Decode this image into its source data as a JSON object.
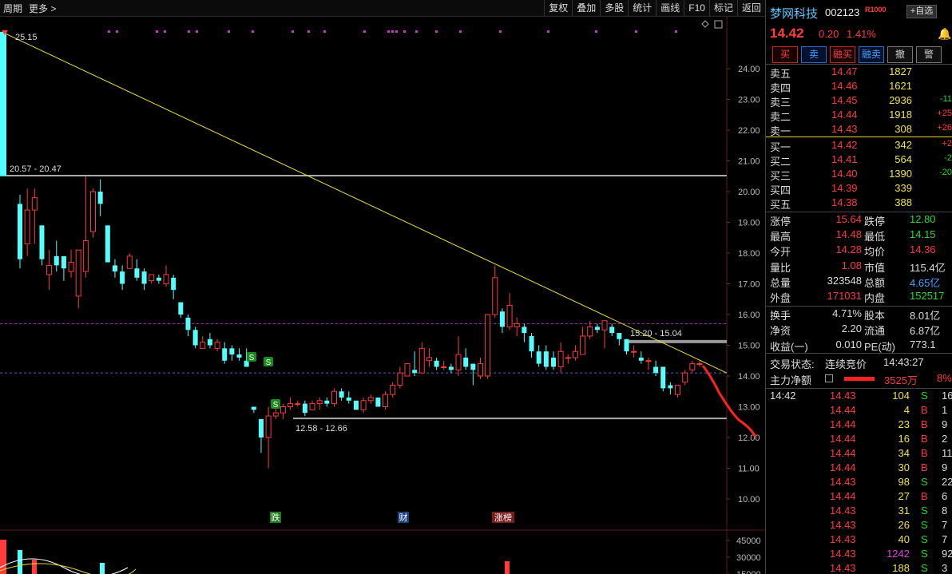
{
  "toolbar": {
    "period": "周期",
    "more": "更多 >",
    "buttons": [
      "复权",
      "叠加",
      "多股",
      "统计",
      "画线",
      "F10",
      "标记",
      "返回"
    ]
  },
  "chart": {
    "y_ticks": [
      "24.00",
      "23.00",
      "22.00",
      "21.00",
      "20.00",
      "19.00",
      "18.00",
      "17.00",
      "16.00",
      "15.00",
      "14.00",
      "13.00",
      "12.00",
      "11.00",
      "10.00"
    ],
    "vol_ticks": [
      "45000",
      "30000",
      "15000"
    ],
    "annotations": {
      "top": "25.15",
      "upper_band": "20.57 - 20.47",
      "mid_band": "15.20 - 15.04",
      "low_band": "12.58 - 12.66"
    },
    "event_tags": [
      {
        "label": "跌",
        "color": "#1d7a1d"
      },
      {
        "label": "财",
        "color": "#1a3f7a"
      },
      {
        "label": "涨榜",
        "color": "#7a1d1d"
      }
    ],
    "signal_label": "S"
  },
  "chart_data": {
    "type": "candlestick",
    "ylim": [
      9.5,
      25.5
    ],
    "candles": [
      [
        19.6,
        17.8,
        19.9,
        17.5
      ],
      [
        18.3,
        19.4,
        20.1,
        17.9
      ],
      [
        19.4,
        19.8,
        20.1,
        18.3
      ],
      [
        18.9,
        17.8,
        18.9,
        17.6
      ],
      [
        17.3,
        17.6,
        18.1,
        16.8
      ],
      [
        17.9,
        17.6,
        18.4,
        17.4
      ],
      [
        17.9,
        17.5,
        17.9,
        17.1
      ],
      [
        17.4,
        17.7,
        18.1,
        17.2
      ],
      [
        16.6,
        18.1,
        18.1,
        16.2
      ],
      [
        17.4,
        18.4,
        20.5,
        17.2
      ],
      [
        18.7,
        20.0,
        20.1,
        18.5
      ],
      [
        20.0,
        19.6,
        20.4,
        19.2
      ],
      [
        18.9,
        17.7,
        18.9,
        17.7
      ],
      [
        17.6,
        17.4,
        17.8,
        17.2
      ],
      [
        17.4,
        17.0,
        17.6,
        16.8
      ],
      [
        17.5,
        17.9,
        18.0,
        17.5
      ],
      [
        17.5,
        17.2,
        17.8,
        17.1
      ],
      [
        17.4,
        17.0,
        17.5,
        16.8
      ],
      [
        17.1,
        17.3,
        17.3,
        17.0
      ],
      [
        17.2,
        17.1,
        17.3,
        17.0
      ],
      [
        17.0,
        17.3,
        17.6,
        16.9
      ],
      [
        17.2,
        16.8,
        17.3,
        16.5
      ],
      [
        16.4,
        16.0,
        16.4,
        15.9
      ],
      [
        15.9,
        15.5,
        16.0,
        15.3
      ],
      [
        15.5,
        15.0,
        15.6,
        14.9
      ],
      [
        14.9,
        15.1,
        15.3,
        14.9
      ],
      [
        15.2,
        15.0,
        15.4,
        14.9
      ],
      [
        14.9,
        15.1,
        15.2,
        14.8
      ],
      [
        14.9,
        14.5,
        15.1,
        14.4
      ],
      [
        14.9,
        14.7,
        15.0,
        14.5
      ],
      [
        14.7,
        14.6,
        14.9,
        14.5
      ],
      [
        14.5,
        14.3,
        14.9,
        14.3
      ],
      [
        13.0,
        12.9,
        13.0,
        12.8
      ],
      [
        12.6,
        12.0,
        12.6,
        11.5
      ],
      [
        12.0,
        12.7,
        13.0,
        11.0
      ],
      [
        12.7,
        12.8,
        13.0,
        12.6
      ],
      [
        12.8,
        13.0,
        13.1,
        12.6
      ],
      [
        13.0,
        13.1,
        13.3,
        12.9
      ],
      [
        13.1,
        13.1,
        13.2,
        13.0
      ],
      [
        13.1,
        12.8,
        13.2,
        12.7
      ],
      [
        12.9,
        13.1,
        13.2,
        12.9
      ],
      [
        13.1,
        13.2,
        13.3,
        12.9
      ],
      [
        13.2,
        13.1,
        13.3,
        13.0
      ],
      [
        13.1,
        13.5,
        13.6,
        13.0
      ],
      [
        13.5,
        13.3,
        13.6,
        13.2
      ],
      [
        13.3,
        13.2,
        13.5,
        13.1
      ],
      [
        13.2,
        12.9,
        13.2,
        12.9
      ],
      [
        12.9,
        13.2,
        13.3,
        12.8
      ],
      [
        13.2,
        13.3,
        13.4,
        13.1
      ],
      [
        13.3,
        13.0,
        13.3,
        13.0
      ],
      [
        13.0,
        13.4,
        13.5,
        12.9
      ],
      [
        13.4,
        13.7,
        13.8,
        13.3
      ],
      [
        13.7,
        14.1,
        14.3,
        13.6
      ],
      [
        14.0,
        14.4,
        14.4,
        14.0
      ],
      [
        14.2,
        14.1,
        14.8,
        14.0
      ],
      [
        14.1,
        14.9,
        15.1,
        14.1
      ],
      [
        14.5,
        14.6,
        14.9,
        14.3
      ],
      [
        14.5,
        14.3,
        14.6,
        14.2
      ],
      [
        14.3,
        14.3,
        14.5,
        14.2
      ],
      [
        14.3,
        14.2,
        14.4,
        14.1
      ],
      [
        14.2,
        14.7,
        15.3,
        14.0
      ],
      [
        14.6,
        14.3,
        14.9,
        14.2
      ],
      [
        14.4,
        14.2,
        14.4,
        13.7
      ],
      [
        14.0,
        14.4,
        14.6,
        13.9
      ],
      [
        14.0,
        16.0,
        16.0,
        13.9
      ],
      [
        16.0,
        17.2,
        17.6,
        15.9
      ],
      [
        16.1,
        15.6,
        16.2,
        15.4
      ],
      [
        15.6,
        16.3,
        16.7,
        15.5
      ],
      [
        15.6,
        15.7,
        15.9,
        15.3
      ],
      [
        15.6,
        15.4,
        15.7,
        15.1
      ],
      [
        15.3,
        14.8,
        15.4,
        14.6
      ],
      [
        14.8,
        14.4,
        15.0,
        14.3
      ],
      [
        14.8,
        14.3,
        15.0,
        14.2
      ],
      [
        14.6,
        14.3,
        14.8,
        14.2
      ],
      [
        14.3,
        14.8,
        15.1,
        14.1
      ],
      [
        14.6,
        14.6,
        14.7,
        14.4
      ],
      [
        14.6,
        14.8,
        15.0,
        14.5
      ],
      [
        14.7,
        15.3,
        15.6,
        14.7
      ],
      [
        15.3,
        15.6,
        15.8,
        15.2
      ],
      [
        15.6,
        15.5,
        15.7,
        15.4
      ],
      [
        15.5,
        15.8,
        15.8,
        14.9
      ],
      [
        15.6,
        15.4,
        15.7,
        15.3
      ],
      [
        15.4,
        15.2,
        15.4,
        15.0
      ],
      [
        15.2,
        14.8,
        15.2,
        14.7
      ],
      [
        14.8,
        14.8,
        15.0,
        14.6
      ],
      [
        14.6,
        14.5,
        14.8,
        14.4
      ],
      [
        14.5,
        14.5,
        14.6,
        14.2
      ],
      [
        14.3,
        14.1,
        14.5,
        14.0
      ],
      [
        14.3,
        13.6,
        14.3,
        13.5
      ],
      [
        13.7,
        13.6,
        13.8,
        13.4
      ],
      [
        13.4,
        13.7,
        13.7,
        13.3
      ],
      [
        13.8,
        14.1,
        14.2,
        13.7
      ],
      [
        14.2,
        14.4,
        14.5,
        14.1
      ],
      [
        14.4,
        14.4,
        14.5,
        14.3
      ]
    ],
    "trendline": [
      [
        0,
        25.15
      ],
      [
        92,
        14.1
      ]
    ],
    "horizontal_lines": [
      20.52,
      15.12,
      12.62
    ],
    "dashed_lines": [
      15.7,
      14.1
    ]
  },
  "quote": {
    "name": "梦网科技",
    "code": "002123",
    "r_badge": "R1000",
    "watch": "+自选",
    "price": "14.42",
    "change": "0.20",
    "change_pct": "1.41%"
  },
  "trade_buttons": [
    "买",
    "卖",
    "融买",
    "融卖",
    "撤",
    "警"
  ],
  "sell_orders": [
    {
      "label": "卖五",
      "price": "14.47",
      "vol": "1827",
      "diff": ""
    },
    {
      "label": "卖四",
      "price": "14.46",
      "vol": "1621",
      "diff": ""
    },
    {
      "label": "卖三",
      "price": "14.45",
      "vol": "2936",
      "diff": "-11"
    },
    {
      "label": "卖二",
      "price": "14.44",
      "vol": "1918",
      "diff": "+25"
    },
    {
      "label": "卖一",
      "price": "14.43",
      "vol": "308",
      "diff": "+26"
    }
  ],
  "buy_orders": [
    {
      "label": "买一",
      "price": "14.42",
      "vol": "342",
      "diff": "+2"
    },
    {
      "label": "买二",
      "price": "14.41",
      "vol": "564",
      "diff": "-2"
    },
    {
      "label": "买三",
      "price": "14.40",
      "vol": "1390",
      "diff": "-20"
    },
    {
      "label": "买四",
      "price": "14.39",
      "vol": "339",
      "diff": ""
    },
    {
      "label": "买五",
      "price": "14.38",
      "vol": "388",
      "diff": ""
    }
  ],
  "stats_a": [
    {
      "k1": "涨停",
      "v1": "15.64",
      "c1": "r",
      "k2": "跌停",
      "v2": "12.80",
      "c2": "g"
    },
    {
      "k1": "最高",
      "v1": "14.48",
      "c1": "r",
      "k2": "最低",
      "v2": "14.15",
      "c2": "g"
    },
    {
      "k1": "今开",
      "v1": "14.28",
      "c1": "r",
      "k2": "均价",
      "v2": "14.36",
      "c2": "r"
    },
    {
      "k1": "量比",
      "v1": "1.08",
      "c1": "r",
      "k2": "市值",
      "v2": "115.4亿",
      "c2": "w"
    },
    {
      "k1": "总量",
      "v1": "323548",
      "c1": "w",
      "k2": "总额",
      "v2": "4.65亿",
      "c2": "bl"
    },
    {
      "k1": "外盘",
      "v1": "171031",
      "c1": "r",
      "k2": "内盘",
      "v2": "152517",
      "c2": "g"
    }
  ],
  "stats_b": [
    {
      "k1": "换手",
      "v1": "4.71%",
      "c1": "w",
      "k2": "股本",
      "v2": "8.01亿",
      "c2": "w"
    },
    {
      "k1": "净资",
      "v1": "2.20",
      "c1": "w",
      "k2": "流通",
      "v2": "6.87亿",
      "c2": "w"
    },
    {
      "k1": "收益(一)",
      "v1": "0.010",
      "c1": "w",
      "k2": "PE(动)",
      "v2": "773.1",
      "c2": "w"
    }
  ],
  "status": {
    "label": "交易状态:",
    "value": "连续竞价",
    "time": "14:43:27"
  },
  "mainflow": {
    "label": "主力净额",
    "amount": "3525万",
    "pct": "8%"
  },
  "ticks": [
    {
      "t": "14:42",
      "p": "14.43",
      "v": "104",
      "s": "S",
      "n": "16"
    },
    {
      "t": "",
      "p": "14.44",
      "v": "4",
      "s": "B",
      "n": "1"
    },
    {
      "t": "",
      "p": "14.44",
      "v": "23",
      "s": "B",
      "n": "9"
    },
    {
      "t": "",
      "p": "14.44",
      "v": "16",
      "s": "B",
      "n": "2"
    },
    {
      "t": "",
      "p": "14.44",
      "v": "34",
      "s": "B",
      "n": "11"
    },
    {
      "t": "",
      "p": "14.44",
      "v": "30",
      "s": "B",
      "n": "9"
    },
    {
      "t": "",
      "p": "14.43",
      "v": "98",
      "s": "S",
      "n": "22"
    },
    {
      "t": "",
      "p": "14.44",
      "v": "27",
      "s": "B",
      "n": "6"
    },
    {
      "t": "",
      "p": "14.43",
      "v": "31",
      "s": "S",
      "n": "8"
    },
    {
      "t": "",
      "p": "14.43",
      "v": "26",
      "s": "S",
      "n": "7"
    },
    {
      "t": "",
      "p": "14.43",
      "v": "40",
      "s": "S",
      "n": "7"
    },
    {
      "t": "",
      "p": "14.43",
      "v": "1242",
      "s": "S",
      "n": "92"
    },
    {
      "t": "",
      "p": "14.43",
      "v": "188",
      "s": "S",
      "n": "3"
    }
  ]
}
